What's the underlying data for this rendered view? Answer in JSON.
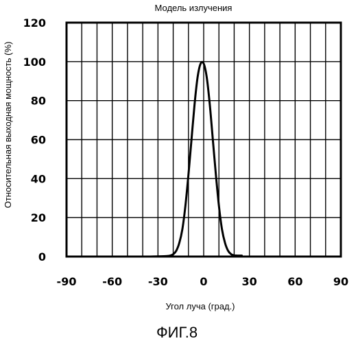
{
  "chart_data": {
    "type": "line",
    "title": "Модель излучения",
    "xlabel": "Угол луча (град.)",
    "ylabel": "Относительная выходная мощность (%)",
    "xlim": [
      -90,
      90
    ],
    "ylim": [
      0,
      120
    ],
    "x_ticks": [
      -90,
      -60,
      -30,
      0,
      30,
      60,
      90
    ],
    "y_ticks": [
      0,
      20,
      40,
      60,
      80,
      100,
      120
    ],
    "x_tick_labels": [
      "-90",
      "-60",
      "-30",
      "0",
      "30",
      "60",
      "90"
    ],
    "y_tick_labels": [
      "0",
      "20",
      "40",
      "60",
      "80",
      "100",
      "120"
    ],
    "grid": true,
    "grid_x_step": 10,
    "grid_y_step": 20,
    "series": [
      {
        "x": [
          -35,
          -25,
          -22,
          -20,
          -18,
          -16,
          -14,
          -12,
          -10,
          -8,
          -6,
          -4,
          -2,
          0,
          2,
          4,
          6,
          8,
          10,
          12,
          14,
          16,
          18,
          20,
          22,
          25
        ],
        "y": [
          0,
          0.2,
          0.5,
          1.2,
          3,
          7,
          14,
          26,
          42,
          60,
          78,
          92,
          99,
          99,
          92,
          78,
          60,
          42,
          26,
          14,
          7,
          3,
          1.2,
          0.6,
          0.5,
          0.5
        ]
      }
    ],
    "colors": {
      "curve": "#000000",
      "grid": "#000000",
      "background": "#ffffff"
    }
  },
  "figure_caption": "ФИГ.8"
}
